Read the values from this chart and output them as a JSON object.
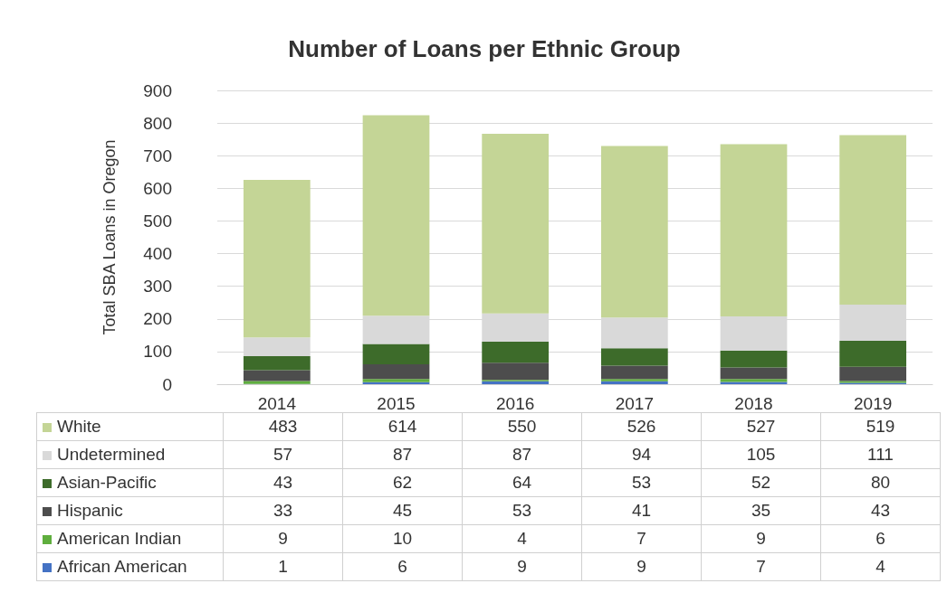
{
  "chart_data": {
    "type": "bar",
    "title": "Number of Loans per Ethnic Group",
    "ylabel": "Total SBA Loans in Oregon",
    "categories": [
      "2014",
      "2015",
      "2016",
      "2017",
      "2018",
      "2019"
    ],
    "stacked": true,
    "series": [
      {
        "name": "African American",
        "color": "#4472c4",
        "values": [
          1,
          6,
          9,
          9,
          7,
          4
        ]
      },
      {
        "name": "American Indian",
        "color": "#5fae3e",
        "values": [
          9,
          10,
          4,
          7,
          9,
          6
        ]
      },
      {
        "name": "Hispanic",
        "color": "#4d4d4d",
        "values": [
          33,
          45,
          53,
          41,
          35,
          43
        ]
      },
      {
        "name": "Asian-Pacific",
        "color": "#3d6b2a",
        "values": [
          43,
          62,
          64,
          53,
          52,
          80
        ]
      },
      {
        "name": "Undetermined",
        "color": "#d9d9d9",
        "values": [
          57,
          87,
          87,
          94,
          105,
          111
        ]
      },
      {
        "name": "White",
        "color": "#c4d596",
        "values": [
          483,
          614,
          550,
          526,
          527,
          519
        ]
      }
    ],
    "ylim": [
      0,
      900
    ],
    "yticks": [
      0,
      100,
      200,
      300,
      400,
      500,
      600,
      700,
      800,
      900
    ],
    "grid": "y",
    "legend": "bottom",
    "data_labels": true
  }
}
